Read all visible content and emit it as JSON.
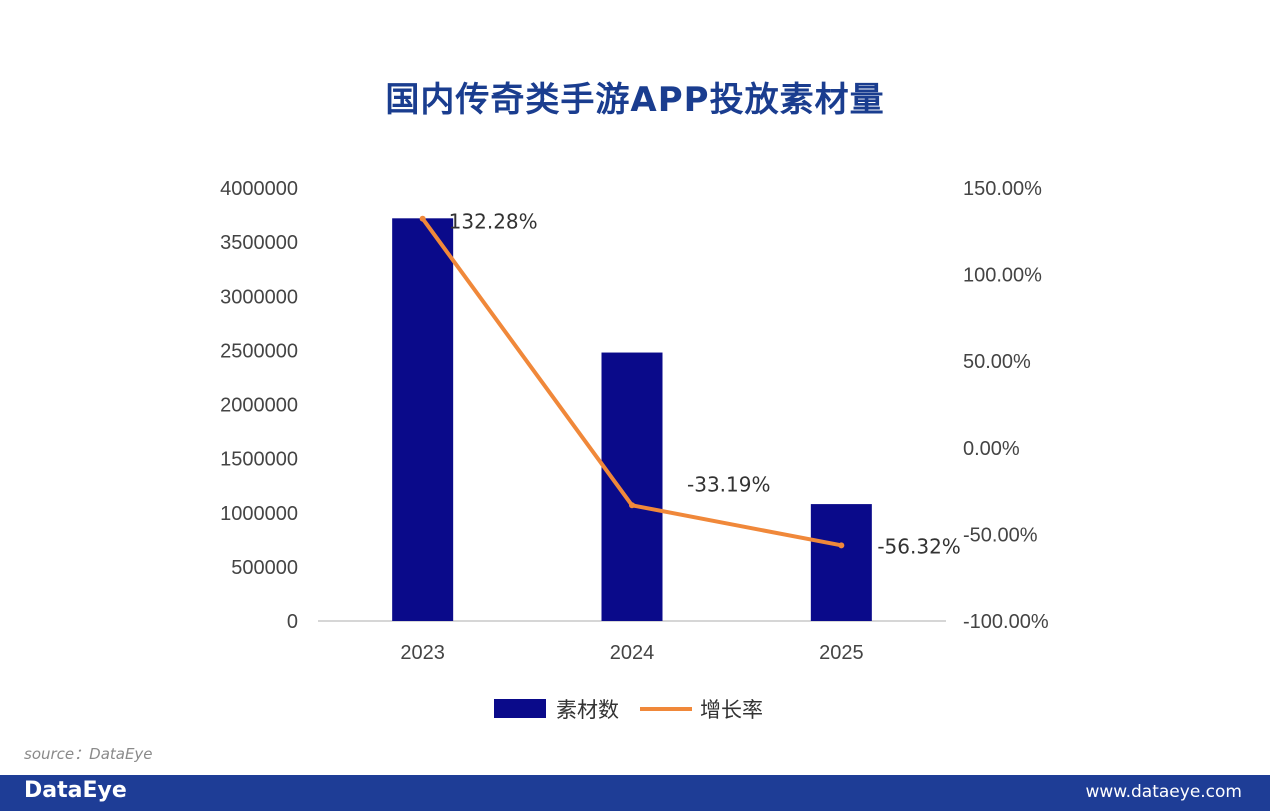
{
  "title": "国内传奇类手游APP投放素材量",
  "source": "source：DataEye",
  "footer": {
    "logo": "DataEye",
    "url": "www.dataeye.com"
  },
  "colors": {
    "bar": "#0a0a8a",
    "line": "#f0883a",
    "title": "#1a3d8f",
    "footer": "#1e3d96"
  },
  "chart_data": {
    "type": "bar",
    "title": "国内传奇类手游APP投放素材量",
    "categories": [
      "2023",
      "2024",
      "2025"
    ],
    "series": [
      {
        "name": "素材数",
        "type": "bar",
        "axis": "left",
        "values": [
          3720000,
          2480000,
          1080000
        ]
      },
      {
        "name": "增长率",
        "type": "line",
        "axis": "right",
        "values": [
          132.28,
          -33.19,
          -56.32
        ],
        "labels": [
          "132.28%",
          "-33.19%",
          "-56.32%"
        ]
      }
    ],
    "left_axis": {
      "ylim": [
        0,
        4000000
      ],
      "ticks": [
        "0",
        "500000",
        "1000000",
        "1500000",
        "2000000",
        "2500000",
        "3000000",
        "3500000",
        "4000000"
      ]
    },
    "right_axis": {
      "ylim": [
        -100,
        150
      ],
      "ticks": [
        "-100.00%",
        "-50.00%",
        "0.00%",
        "50.00%",
        "100.00%",
        "150.00%"
      ]
    },
    "legend": [
      "素材数",
      "增长率"
    ],
    "legend_position": "bottom"
  }
}
